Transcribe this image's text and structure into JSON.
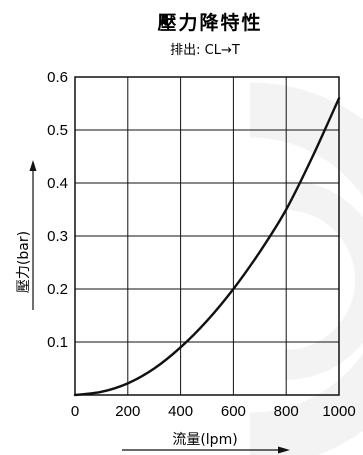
{
  "chart_data": {
    "type": "line",
    "title": "壓力降特性",
    "subtitle": "排出: CL→T",
    "xlabel": "流量(lpm)",
    "ylabel": "壓力(bar)",
    "xlim": [
      0,
      1000
    ],
    "ylim": [
      0,
      0.6
    ],
    "x_ticks": [
      0,
      200,
      400,
      600,
      800,
      1000
    ],
    "x_tick_labels": [
      "0",
      "200",
      "400",
      "600",
      "800",
      "1000"
    ],
    "y_ticks": [
      0.1,
      0.2,
      0.3,
      0.4,
      0.5,
      0.6
    ],
    "y_tick_labels": [
      "0.1",
      "0.2",
      "0.3",
      "0.4",
      "0.5",
      "0.6"
    ],
    "grid": true,
    "x_axis_arrow": true,
    "y_axis_arrow": true,
    "series": [
      {
        "x": [
          0,
          100,
          200,
          300,
          400,
          500,
          600,
          700,
          800,
          900,
          1000
        ],
        "y": [
          0,
          0.006,
          0.022,
          0.05,
          0.09,
          0.14,
          0.2,
          0.27,
          0.35,
          0.45,
          0.56
        ],
        "color": "#111111"
      }
    ]
  }
}
